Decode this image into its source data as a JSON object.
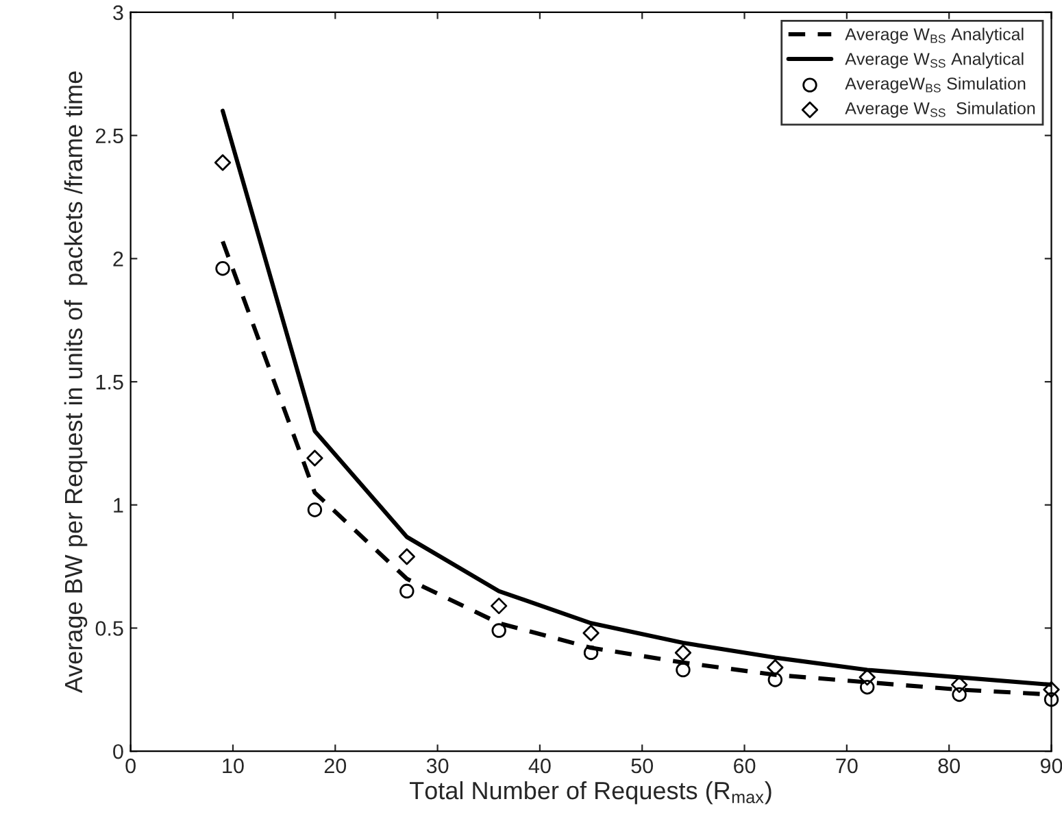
{
  "chart_data": {
    "type": "line",
    "xlabel": "Total Number of Requests (R$_{max}$)",
    "ylabel": "Average BW per Request in units of  packets /frame time",
    "x": [
      9,
      18,
      27,
      36,
      45,
      54,
      63,
      72,
      81,
      90
    ],
    "series": [
      {
        "name": "Average W$_{BS}$ Analytical",
        "line_style": "dashed",
        "color": "#000000",
        "values": [
          2.07,
          1.05,
          0.7,
          0.52,
          0.42,
          0.36,
          0.31,
          0.28,
          0.25,
          0.23
        ]
      },
      {
        "name": "Average W$_{SS}$ Analytical",
        "line_style": "solid",
        "color": "#000000",
        "values": [
          2.6,
          1.3,
          0.87,
          0.65,
          0.52,
          0.44,
          0.38,
          0.33,
          0.3,
          0.27
        ]
      },
      {
        "name": "AverageW$_{BS}$ Simulation",
        "type": "scatter",
        "marker": "circle",
        "color": "#000000",
        "values": [
          1.96,
          0.98,
          0.65,
          0.49,
          0.4,
          0.33,
          0.29,
          0.26,
          0.23,
          0.21
        ]
      },
      {
        "name": "Average W$_{SS}$  Simulation",
        "type": "scatter",
        "marker": "diamond",
        "color": "#000000",
        "values": [
          2.39,
          1.19,
          0.79,
          0.59,
          0.48,
          0.4,
          0.34,
          0.3,
          0.27,
          0.25
        ]
      }
    ],
    "xlim": [
      0,
      90
    ],
    "xticks": [
      0,
      10,
      20,
      30,
      40,
      50,
      60,
      70,
      80,
      90
    ],
    "ylim": [
      0,
      3
    ],
    "yticks": [
      0,
      0.5,
      1,
      1.5,
      2,
      2.5,
      3
    ],
    "legend": "top right",
    "grid": false
  }
}
